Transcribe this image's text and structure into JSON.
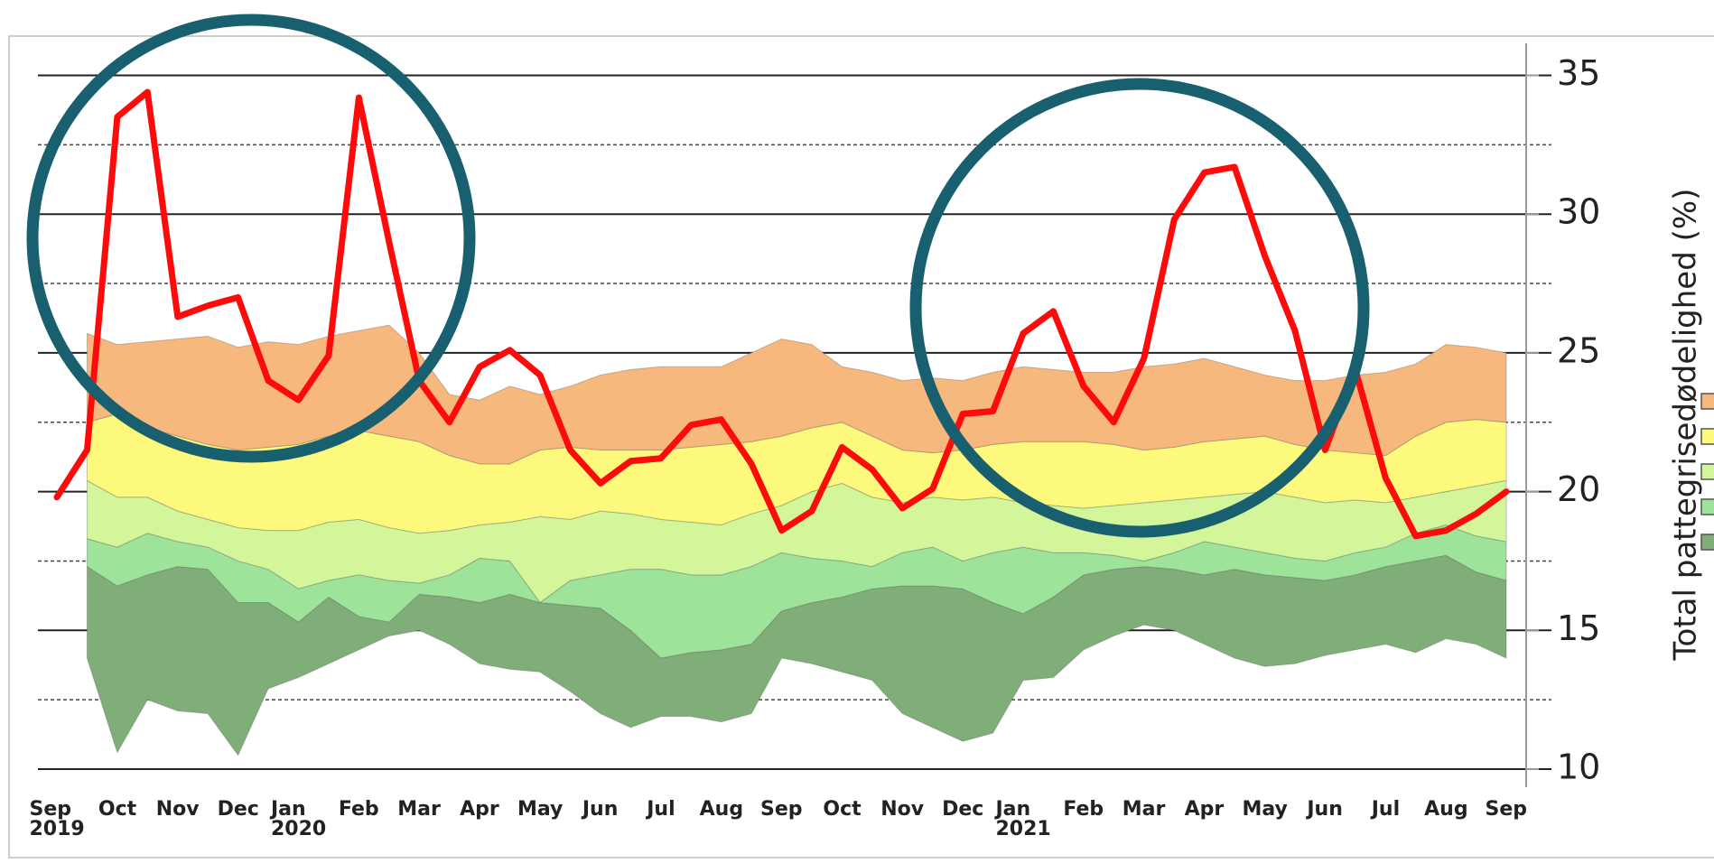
{
  "chart_data": {
    "type": "band",
    "ylabel": "Total pattegrisedødelighed (%)",
    "categories": [
      "Sep\n2019",
      null,
      "Oct",
      null,
      "Nov",
      null,
      "Dec",
      null,
      "Jan\n2020",
      null,
      "Feb",
      null,
      "Mar",
      null,
      "Apr",
      null,
      "May",
      null,
      "Jun",
      null,
      "Jul",
      null,
      "Aug",
      null,
      "Sep",
      null,
      "Oct",
      null,
      "Nov",
      null,
      "Dec",
      null,
      "Jan\n2021",
      null,
      "Feb",
      null,
      "Mar",
      null,
      "Apr",
      null,
      "May",
      null,
      "Jun",
      null,
      "Jul",
      null,
      "Aug",
      null,
      "Sep"
    ],
    "boundaries": [
      {
        "values": [
          null,
          14.0,
          10.6,
          12.5,
          12.1,
          12.0,
          10.5,
          12.9,
          13.3,
          13.8,
          14.3,
          14.8,
          15.0,
          14.5,
          13.8,
          13.6,
          13.5,
          12.8,
          12.0,
          11.5,
          11.9,
          11.9,
          11.7,
          12.0,
          14.0,
          13.8,
          13.5,
          13.2,
          12.0,
          11.5,
          11.0,
          11.3,
          13.2,
          13.3,
          14.3,
          14.8,
          15.2,
          15.0,
          14.5,
          14.0,
          13.7,
          13.8,
          14.1,
          14.3,
          14.5,
          14.2,
          14.7,
          14.5,
          14.0
        ]
      },
      {
        "values": [
          null,
          17.3,
          16.6,
          17.0,
          17.3,
          17.2,
          16.0,
          16.0,
          15.3,
          16.2,
          15.5,
          15.3,
          16.3,
          16.2,
          16.0,
          16.3,
          16.0,
          15.9,
          15.8,
          15.0,
          14.0,
          14.2,
          14.3,
          14.5,
          15.7,
          16.0,
          16.2,
          16.5,
          16.6,
          16.6,
          16.5,
          16.0,
          15.6,
          16.2,
          17.0,
          17.2,
          17.3,
          17.2,
          17.0,
          17.2,
          17.0,
          16.9,
          16.8,
          17.0,
          17.3,
          17.5,
          17.7,
          17.1,
          16.8
        ]
      },
      {
        "values": [
          null,
          18.3,
          18.0,
          18.5,
          18.2,
          18.0,
          17.5,
          17.2,
          16.5,
          16.8,
          17.0,
          16.8,
          16.7,
          17.0,
          17.6,
          17.5,
          16.0,
          16.8,
          17.0,
          17.2,
          17.2,
          17.0,
          17.0,
          17.3,
          17.8,
          17.6,
          17.5,
          17.3,
          17.8,
          18.0,
          17.5,
          17.8,
          18.0,
          17.8,
          17.8,
          17.7,
          17.5,
          17.8,
          18.2,
          18.0,
          17.8,
          17.6,
          17.5,
          17.8,
          18.0,
          18.5,
          18.8,
          18.4,
          18.2
        ]
      },
      {
        "values": [
          null,
          20.4,
          19.8,
          19.8,
          19.3,
          19.0,
          18.7,
          18.6,
          18.6,
          18.9,
          19.0,
          18.7,
          18.5,
          18.6,
          18.8,
          18.9,
          19.1,
          19.0,
          19.3,
          19.2,
          19.0,
          18.9,
          18.8,
          19.2,
          19.5,
          20.0,
          20.3,
          19.8,
          19.6,
          19.8,
          19.7,
          19.8,
          19.6,
          19.5,
          19.4,
          19.5,
          19.6,
          19.7,
          19.8,
          19.9,
          20.0,
          19.8,
          19.6,
          19.7,
          19.6,
          19.8,
          20.0,
          20.2,
          20.4
        ]
      },
      {
        "values": [
          null,
          22.5,
          22.8,
          22.3,
          22.0,
          21.7,
          21.5,
          21.6,
          21.7,
          22.0,
          22.2,
          22.0,
          21.8,
          21.3,
          21.0,
          21.0,
          21.5,
          21.6,
          21.5,
          21.5,
          21.5,
          21.6,
          21.7,
          21.8,
          22.0,
          22.3,
          22.5,
          22.0,
          21.5,
          21.4,
          21.5,
          21.7,
          21.8,
          21.8,
          21.8,
          21.7,
          21.5,
          21.6,
          21.8,
          21.9,
          22.0,
          21.7,
          21.5,
          21.4,
          21.3,
          22.0,
          22.5,
          22.6,
          22.5
        ]
      },
      {
        "values": [
          null,
          25.7,
          25.3,
          25.4,
          25.5,
          25.6,
          25.2,
          25.4,
          25.3,
          25.6,
          25.8,
          26.0,
          25.0,
          23.5,
          23.3,
          23.8,
          23.5,
          23.8,
          24.2,
          24.4,
          24.5,
          24.5,
          24.5,
          25.0,
          25.5,
          25.3,
          24.5,
          24.3,
          24.0,
          24.1,
          24.0,
          24.3,
          24.5,
          24.4,
          24.3,
          24.3,
          24.5,
          24.6,
          24.8,
          24.5,
          24.2,
          24.0,
          24.0,
          24.2,
          24.3,
          24.6,
          25.3,
          25.2,
          25.0
        ]
      }
    ],
    "band_colors": [
      "#80ae78",
      "#9de39a",
      "#d3f69b",
      "#fdf97c",
      "#f6b87c"
    ],
    "series": [
      {
        "color": "#ff0a0a",
        "values": [
          19.8,
          21.5,
          33.5,
          34.4,
          26.3,
          26.7,
          27.0,
          24.0,
          23.3,
          24.9,
          34.2,
          29.0,
          24.0,
          22.5,
          24.5,
          25.1,
          24.2,
          21.5,
          20.3,
          21.1,
          21.2,
          22.4,
          22.6,
          21.0,
          18.6,
          19.3,
          21.6,
          20.8,
          19.4,
          20.1,
          22.8,
          22.9,
          25.7,
          26.5,
          23.8,
          22.5,
          24.8,
          29.8,
          31.5,
          31.7,
          28.5,
          25.8,
          21.5,
          24.4,
          20.5,
          18.4,
          18.6,
          19.2,
          20.0
        ]
      }
    ],
    "ylim": [
      10,
      35
    ],
    "yticks": [
      10,
      15,
      20,
      25,
      30,
      35
    ],
    "yminor_grid": [
      12.5,
      17.5,
      22.5,
      27.5,
      32.5
    ],
    "grid": true,
    "y_axis_side": "right"
  }
}
